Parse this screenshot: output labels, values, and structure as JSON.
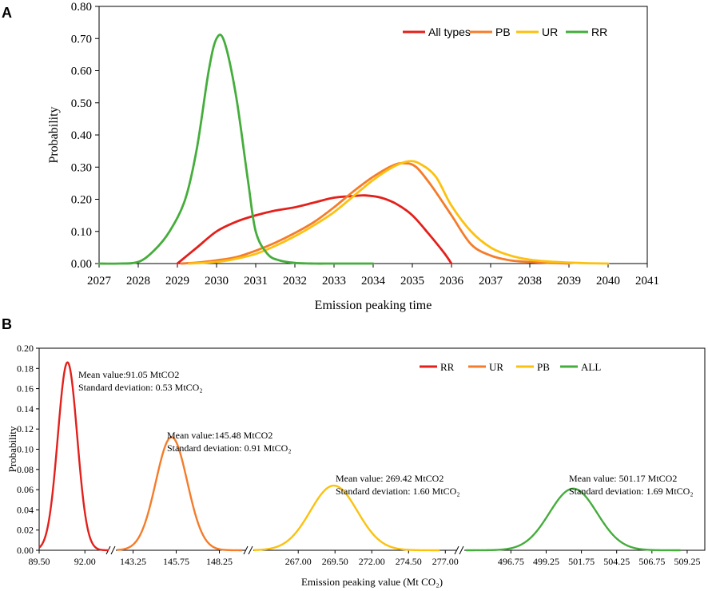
{
  "panel_a_letter": "A",
  "panel_b_letter": "B",
  "chart_data": [
    {
      "panel": "A",
      "type": "line",
      "xlabel": "Emission peaking time",
      "ylabel": "Probability",
      "xlim": [
        2027,
        2041
      ],
      "ylim": [
        0,
        0.8
      ],
      "x_ticks": [
        "2027",
        "2028",
        "2029",
        "2030",
        "2031",
        "2032",
        "2033",
        "2034",
        "2035",
        "2036",
        "2037",
        "2038",
        "2039",
        "2040",
        "2041"
      ],
      "y_ticks": [
        "0.00",
        "0.10",
        "0.20",
        "0.30",
        "0.40",
        "0.50",
        "0.60",
        "0.70",
        "0.80"
      ],
      "series": [
        {
          "name": "All types",
          "color": "#e3201b",
          "x": [
            2029,
            2029.5,
            2030,
            2030.5,
            2031,
            2031.5,
            2032,
            2032.5,
            2033,
            2033.5,
            2033.8,
            2034.2,
            2034.6,
            2035,
            2035.4,
            2035.8,
            2036
          ],
          "y": [
            0.0,
            0.05,
            0.1,
            0.13,
            0.15,
            0.165,
            0.175,
            0.19,
            0.205,
            0.21,
            0.212,
            0.205,
            0.185,
            0.15,
            0.095,
            0.035,
            0.0
          ]
        },
        {
          "name": "PB",
          "color": "#f47c2a",
          "x": [
            2029.1,
            2029.5,
            2030,
            2030.5,
            2031,
            2031.5,
            2032,
            2032.5,
            2033,
            2033.5,
            2034,
            2034.5,
            2034.8,
            2035.1,
            2035.5,
            2036,
            2036.5,
            2037,
            2037.5,
            2038,
            2038.5,
            2039
          ],
          "y": [
            0.0,
            0.003,
            0.01,
            0.02,
            0.04,
            0.065,
            0.095,
            0.13,
            0.175,
            0.225,
            0.27,
            0.305,
            0.312,
            0.3,
            0.24,
            0.15,
            0.06,
            0.025,
            0.01,
            0.005,
            0.002,
            0.0
          ]
        },
        {
          "name": "UR",
          "color": "#fcc10f",
          "x": [
            2029.3,
            2030,
            2030.5,
            2031,
            2031.5,
            2032,
            2032.5,
            2033,
            2033.5,
            2034,
            2034.5,
            2034.9,
            2035.2,
            2035.6,
            2036,
            2036.5,
            2037,
            2037.5,
            2038,
            2038.5,
            2039,
            2039.5,
            2040
          ],
          "y": [
            0.0,
            0.005,
            0.015,
            0.03,
            0.055,
            0.085,
            0.12,
            0.16,
            0.21,
            0.26,
            0.3,
            0.318,
            0.31,
            0.27,
            0.18,
            0.1,
            0.05,
            0.025,
            0.012,
            0.006,
            0.003,
            0.001,
            0.0
          ]
        },
        {
          "name": "RR",
          "color": "#45ad3c",
          "x": [
            2027,
            2027.5,
            2028,
            2028.4,
            2028.8,
            2029.2,
            2029.5,
            2029.8,
            2030,
            2030.2,
            2030.5,
            2030.8,
            2031,
            2031.3,
            2031.6,
            2032,
            2032.5,
            2033,
            2034
          ],
          "y": [
            0.0,
            0.0,
            0.005,
            0.04,
            0.1,
            0.2,
            0.36,
            0.6,
            0.7,
            0.69,
            0.52,
            0.26,
            0.1,
            0.03,
            0.01,
            0.002,
            0.0,
            0.0,
            0.0
          ]
        }
      ],
      "legend": [
        "All types",
        "PB",
        "UR",
        "RR"
      ]
    },
    {
      "panel": "B",
      "type": "line",
      "xlabel": "Emission peaking value (Mt CO₂)",
      "ylabel": "Probability",
      "ylim": [
        0,
        0.2
      ],
      "x_ticks": [
        "89.50",
        "92.00",
        "143.25",
        "145.75",
        "148.25",
        "267.00",
        "269.50",
        "272.00",
        "274.50",
        "277.00",
        "496.75",
        "499.25",
        "501.75",
        "504.25",
        "506.75",
        "509.25"
      ],
      "y_ticks": [
        "0.00",
        "0.02",
        "0.04",
        "0.06",
        "0.08",
        "0.10",
        "0.12",
        "0.14",
        "0.16",
        "0.18",
        "0.20"
      ],
      "axis_segments": [
        {
          "name": "RR",
          "xlim": [
            89.5,
            93.3
          ]
        },
        {
          "name": "UR",
          "xlim": [
            142.3,
            149.8
          ]
        },
        {
          "name": "PB",
          "xlim": [
            264.0,
            277.8
          ]
        },
        {
          "name": "ALL",
          "xlim": [
            493.5,
            510.5
          ]
        }
      ],
      "series": [
        {
          "name": "RR",
          "color": "#e3201b",
          "mean": 91.05,
          "sd": 0.53,
          "peak": 0.186,
          "annotation": [
            "Mean value:91.05  MtCO2",
            "Standard deviation:  0.53 MtCO₂"
          ]
        },
        {
          "name": "UR",
          "color": "#f47c2a",
          "mean": 145.48,
          "sd": 0.91,
          "peak": 0.112,
          "annotation": [
            "Mean value:145.48  MtCO2",
            "Standard deviation:  0.91 MtCO₂"
          ]
        },
        {
          "name": "PB",
          "color": "#fcc10f",
          "mean": 269.42,
          "sd": 1.6,
          "peak": 0.064,
          "annotation": [
            "Mean value: 269.42 MtCO2",
            "Standard deviation:  1.60 MtCO₂"
          ]
        },
        {
          "name": "ALL",
          "color": "#45ad3c",
          "mean": 501.17,
          "sd": 1.69,
          "peak": 0.061,
          "annotation": [
            "Mean value: 501.17 MtCO2",
            "Standard deviation:  1.69 MtCO₂"
          ]
        }
      ],
      "legend": [
        "RR",
        "UR",
        "PB",
        "ALL"
      ]
    }
  ]
}
